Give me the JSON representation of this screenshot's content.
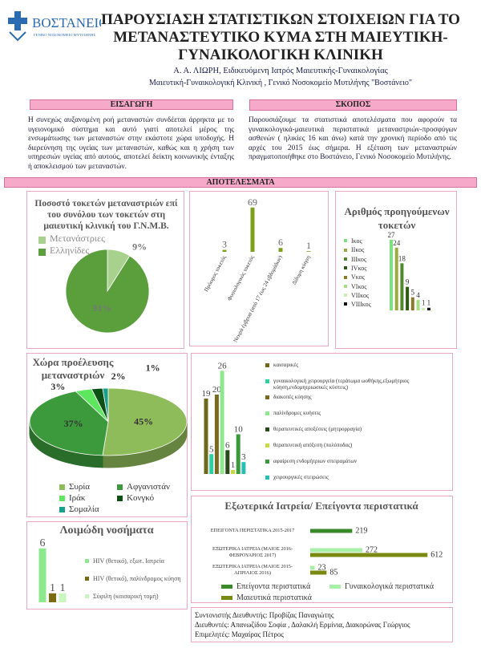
{
  "header": {
    "logo_name": "ΒΟΣΤΑΝΕΙΟ",
    "logo_subtitle": "ΓΕΝΙΚΟ ΝΟΣΟΚΟΜΕΙΟ ΜΥΤΙΛΗΝΗΣ",
    "title": "ΠΑΡΟΥΣΙΑΣΗ ΣΤΑΤΙΣΤΙΚΩΝ ΣΤΟΙΧΕΙΩΝ ΓΙΑ ΤΟ ΜΕΤΑΝΑΣΤΕΥΤΙΚΟ ΚΥΜΑ ΣΤΗ ΜΑΙΕΥΤΙΚΗ-ΓΥΝΑΙΚΟΛΟΓΙΚΗ ΚΛΙΝΙΚΗ",
    "author": "Α. Α. ΛΙΩΡΗ, Ειδικευόμενη Ιατρός Μαιευτικής-Γυναικολογίας",
    "affiliation": "Μαιευτική-Γυναικολογική Κλινική , Γενικό Νοσοκομείο Μυτιλήνης \"Βοστάνειο\""
  },
  "introduction": {
    "heading": "ΕΙΣΑΓΩΓΗ",
    "text": "Η συνεχώς αυξανομένη ροή μεταναστών συνδέεται άρρηκτα με το υγειονομικό σύστημα και αυτό γιατί αποτελεί μέρος της ενσωμάτωσης των μεταναστών στην εκάστοτε χώρα υποδοχής. Η διερεύνηση της υγείας των μεταναστών, καθώς και η χρήση των υπηρεσιών υγείας από αυτούς, αποτελεί δείκτη κοινωνικής ένταξης ή αποκλεισμού των μεταναστών."
  },
  "aim": {
    "heading": "ΣΚΟΠΟΣ",
    "text": "Παρουσιάζουμε τα στατιστικά αποτελέσματα που αφορούν τα γυναικολογικά-μαιευτικά περιστατικά μεταναστριών-προσφύγων ασθενών ( ηλικίες 16 και άνω) κατά την χρονική περίοδο από τις αρχές του 2015 έως σήμερα. Η εξέταση των μεταναστριών πραγματοποιήθηκε στο Βοστάνειο, Γενικό Νοσοκομείο Μυτιλήνης."
  },
  "results": {
    "heading": "ΑΠΟΤΕΛΕΣΜΑΤΑ"
  },
  "chart_data": [
    {
      "type": "pie",
      "title": "Ποσοστό τοκετών μεταναστριών επί του συνόλου των τοκετών στη μαιευτική κλινική του Γ.Ν.Μ.Β.",
      "categories": [
        "Μετανάστριες",
        "Ελληνίδες"
      ],
      "values": [
        9,
        91
      ],
      "value_labels": [
        "9%",
        "91%"
      ],
      "colors": [
        "#a9d18e",
        "#5a9f3c"
      ],
      "legend": "top-left"
    },
    {
      "type": "bar",
      "categories": [
        "Πρόωρος τοκετός",
        "Φυσιολογικός τοκετός",
        "Νεκρά έμβρυα (από 17 έως 24 εβδομάδων)",
        "Δίδυμη κύηση"
      ],
      "values": [
        3,
        69,
        6,
        1
      ],
      "color": "#7f9f1f"
    },
    {
      "type": "bar",
      "title": "Αριθμός προηγούμενων τοκετών",
      "categories": [
        "Ικος",
        "ΙΙκος",
        "ΙΙΙκος",
        "ΙVκος",
        "Vκος",
        "VΙκος",
        "VΙΙκος",
        "VΙΙΙκος"
      ],
      "values": [
        27,
        24,
        18,
        9,
        5,
        4,
        1,
        1
      ],
      "colors": [
        "#7ee07e",
        "#9aab3b",
        "#4e8a2a",
        "#2e5a14",
        "#8a7a2a",
        "#a0e080",
        "#c8f0b0",
        "#111111"
      ],
      "legend": "left"
    },
    {
      "type": "pie",
      "3d": true,
      "title": "Χώρα προέλευσης μεταναστριών",
      "categories": [
        "Συρία",
        "Αφγανιστάν",
        "Ιράκ",
        "Κονγκό",
        "Σομαλία"
      ],
      "values": [
        45,
        37,
        3,
        2,
        1
      ],
      "value_labels": [
        "45%",
        "37%",
        "3%",
        "2%",
        "1%"
      ],
      "colors": [
        "#8fbc5a",
        "#3c9a3c",
        "#5ee65e",
        "#0d4f14",
        "#1aa08a"
      ],
      "legend": "bottom"
    },
    {
      "type": "bar",
      "categories": [
        "καισαρικές",
        "γυναικολογική χειρουργεία (τεράτωμα ωοθήκης,εξωμήτριος κύηση,ενδομητριωσικές κύστεις)",
        "διακοπές κύησης",
        "παλίνδρομες κυήσεις",
        "θεραπευτικές αποξέσεις (μητρορραγία)",
        "θεραπευτική απόξεση (πολύποδας)",
        "αφαίρεση ενδομήτριων σπειραμάτων",
        "χειρουργικές στειρώσεις"
      ],
      "values": [
        19,
        5,
        20,
        26,
        6,
        1,
        10,
        3
      ],
      "colors": [
        "#6e6a1a",
        "#2ed0a0",
        "#7a6a20",
        "#8ee88e",
        "#2a4a1a",
        "#c8d840",
        "#3a9a3a",
        "#26c0b0"
      ],
      "legend": "right"
    },
    {
      "type": "bar",
      "orientation": "horizontal",
      "title": "Εξωτερικά Ιατρεία/ Επείγοντα περιστατικά",
      "categories": [
        "ΕΠΕΙΓΟΝΤΑ ΠΕΡΙΣΤΑΤΙΚΑ 2015-2017",
        "ΕΞΩΤΕΡΙΚΑ ΙΑΤΡΕΙΑ (ΜΑΙΟΣ 2016-ΦΕΒΡΟΥΑΡΙΟΣ 2017)",
        "ΕΞΩΤΕΡΙΚΑ ΙΑΤΡΕΙΑ (ΜΑΙΟΣ 2015-ΑΠΡΙΛΙΟΣ 2016)"
      ],
      "series": [
        {
          "name": "Επείγοντα περιστατικά",
          "color": "#3a8a2a",
          "values": [
            219,
            null,
            null
          ]
        },
        {
          "name": "Γυναικολογικά περιστατικά",
          "color": "#a8f0a8",
          "values": [
            null,
            272,
            23
          ]
        },
        {
          "name": "Μαιευτικά περιστατικά",
          "color": "#7a8a10",
          "values": [
            null,
            612,
            85
          ]
        }
      ],
      "legend": "bottom"
    },
    {
      "type": "bar",
      "title": "Λοιμώδη νοσήματα",
      "categories": [
        "HIV (θετικό), εξωτ. Ιατρεία",
        "HIV (θετικό), παλίνδρομος κύηση",
        "Σύφιλη (καισαρική τομή)"
      ],
      "values": [
        6,
        1,
        1
      ],
      "colors": [
        "#8ee88e",
        "#7a6a10",
        "#c8f5c0"
      ],
      "legend": "right"
    }
  ],
  "footer": {
    "lines": [
      "Συντονιστής Διευθυντής: Προβίζας Παναγιώτης",
      "Διευθυντές: Απανωζίδου Σοφία , Δαλακλή Ερμίνια, Διακορώνας  Γεώργιος",
      "Επιμελητές: Μαχαίρας Πέτρος"
    ]
  }
}
